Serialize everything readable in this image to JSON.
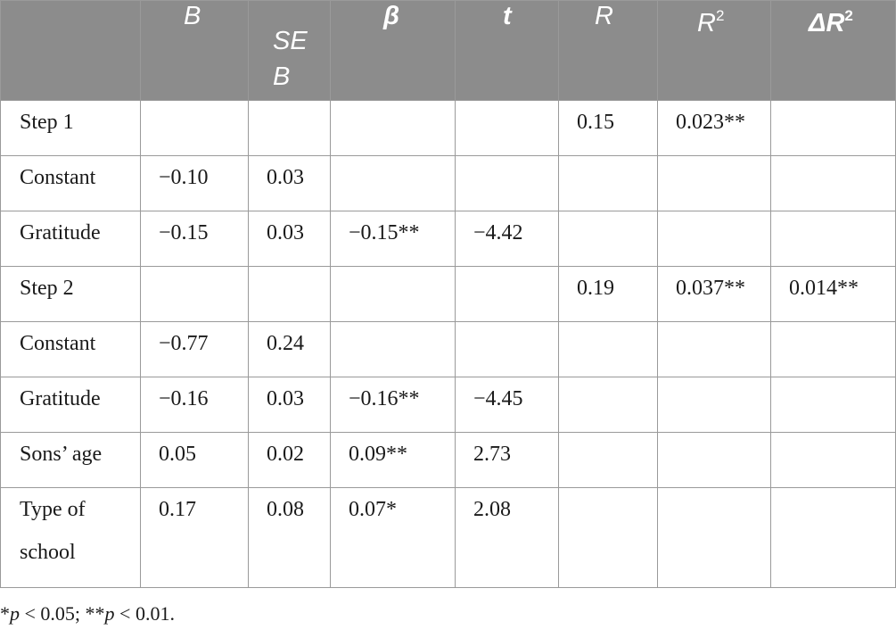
{
  "table": {
    "headers": [
      "",
      "B",
      "SE B",
      "β",
      "t",
      "R",
      "R2",
      "ΔR2"
    ],
    "header_display": {
      "b": "B",
      "se_b": "SE B",
      "beta": "β",
      "t": "t",
      "r": "R",
      "r2_base": "R",
      "r2_sup": "2",
      "dr2_base": "ΔR",
      "dr2_sup": "2"
    },
    "rows": [
      {
        "label": "Step 1",
        "b": "",
        "se_b": "",
        "beta": "",
        "t": "",
        "r": "0.15",
        "r2": "0.023**",
        "dr2": ""
      },
      {
        "label": "Constant",
        "b": "−0.10",
        "se_b": "0.03",
        "beta": "",
        "t": "",
        "r": "",
        "r2": "",
        "dr2": ""
      },
      {
        "label": "Gratitude",
        "b": "−0.15",
        "se_b": "0.03",
        "beta": "−0.15**",
        "t": "−4.42",
        "r": "",
        "r2": "",
        "dr2": ""
      },
      {
        "label": "Step 2",
        "b": "",
        "se_b": "",
        "beta": "",
        "t": "",
        "r": "0.19",
        "r2": "0.037**",
        "dr2": "0.014**"
      },
      {
        "label": "Constant",
        "b": "−0.77",
        "se_b": "0.24",
        "beta": "",
        "t": "",
        "r": "",
        "r2": "",
        "dr2": ""
      },
      {
        "label": "Gratitude",
        "b": "−0.16",
        "se_b": "0.03",
        "beta": "−0.16**",
        "t": "−4.45",
        "r": "",
        "r2": "",
        "dr2": ""
      },
      {
        "label": "Sons’ age",
        "b": "0.05",
        "se_b": "0.02",
        "beta": "0.09**",
        "t": "2.73",
        "r": "",
        "r2": "",
        "dr2": ""
      },
      {
        "label": "Type of school",
        "b": "0.17",
        "se_b": "0.08",
        "beta": "0.07*",
        "t": "2.08",
        "r": "",
        "r2": "",
        "dr2": ""
      }
    ]
  },
  "footnote": {
    "star1": "*",
    "p1": "p",
    "text1": " < 0.05; **",
    "p2": "p",
    "text2": " < 0.01."
  },
  "colors": {
    "header_bg": "#8c8c8c",
    "header_text": "#ffffff",
    "border": "#9a9a9a",
    "body_text": "#1a1a1a"
  }
}
